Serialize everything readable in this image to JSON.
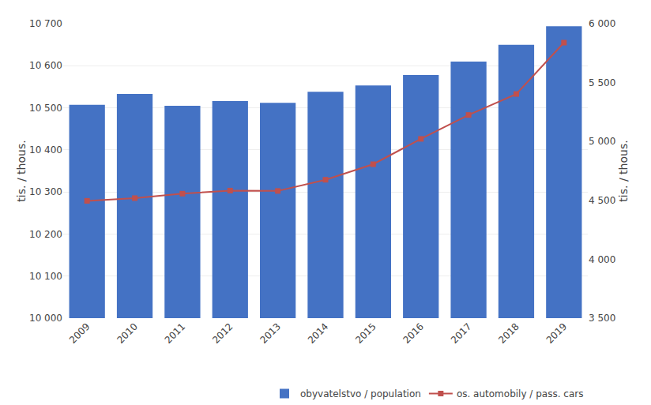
{
  "chart_data": {
    "type": "bar",
    "categories": [
      "2009",
      "2010",
      "2011",
      "2012",
      "2013",
      "2014",
      "2015",
      "2016",
      "2017",
      "2018",
      "2019"
    ],
    "series": [
      {
        "name": "obyvatelstvo / population",
        "type": "bar",
        "color": "#4472c4",
        "values": [
          10507,
          10533,
          10505,
          10516,
          10512,
          10538,
          10553,
          10578,
          10610,
          10650,
          10694
        ]
      },
      {
        "name": "os. automobily / pass. cars",
        "type": "line",
        "color": "#c0504d",
        "marker": "square",
        "axis": "y2",
        "values": [
          4496,
          4519,
          4557,
          4583,
          4580,
          4675,
          4807,
          5022,
          5225,
          5403,
          5839
        ]
      }
    ],
    "ylabel": "tis. / thous.",
    "y2label": "tis. / thous.",
    "ylim": [
      10000,
      10700
    ],
    "yticks": [
      {
        "value": 10000,
        "label": "10 000"
      },
      {
        "value": 10100,
        "label": "10 100"
      },
      {
        "value": 10200,
        "label": "10 200"
      },
      {
        "value": 10300,
        "label": "10 300"
      },
      {
        "value": 10400,
        "label": "10 400"
      },
      {
        "value": 10500,
        "label": "10 500"
      },
      {
        "value": 10600,
        "label": "10 600"
      },
      {
        "value": 10700,
        "label": "10 700"
      }
    ],
    "y2lim": [
      3500,
      6000
    ],
    "y2ticks": [
      {
        "value": 3500,
        "label": "3 500"
      },
      {
        "value": 4000,
        "label": "4 000"
      },
      {
        "value": 4500,
        "label": "4 500"
      },
      {
        "value": 5000,
        "label": "5 000"
      },
      {
        "value": 5500,
        "label": "5 500"
      },
      {
        "value": 6000,
        "label": "6 000"
      }
    ],
    "grid": true,
    "legend": "lower right"
  }
}
